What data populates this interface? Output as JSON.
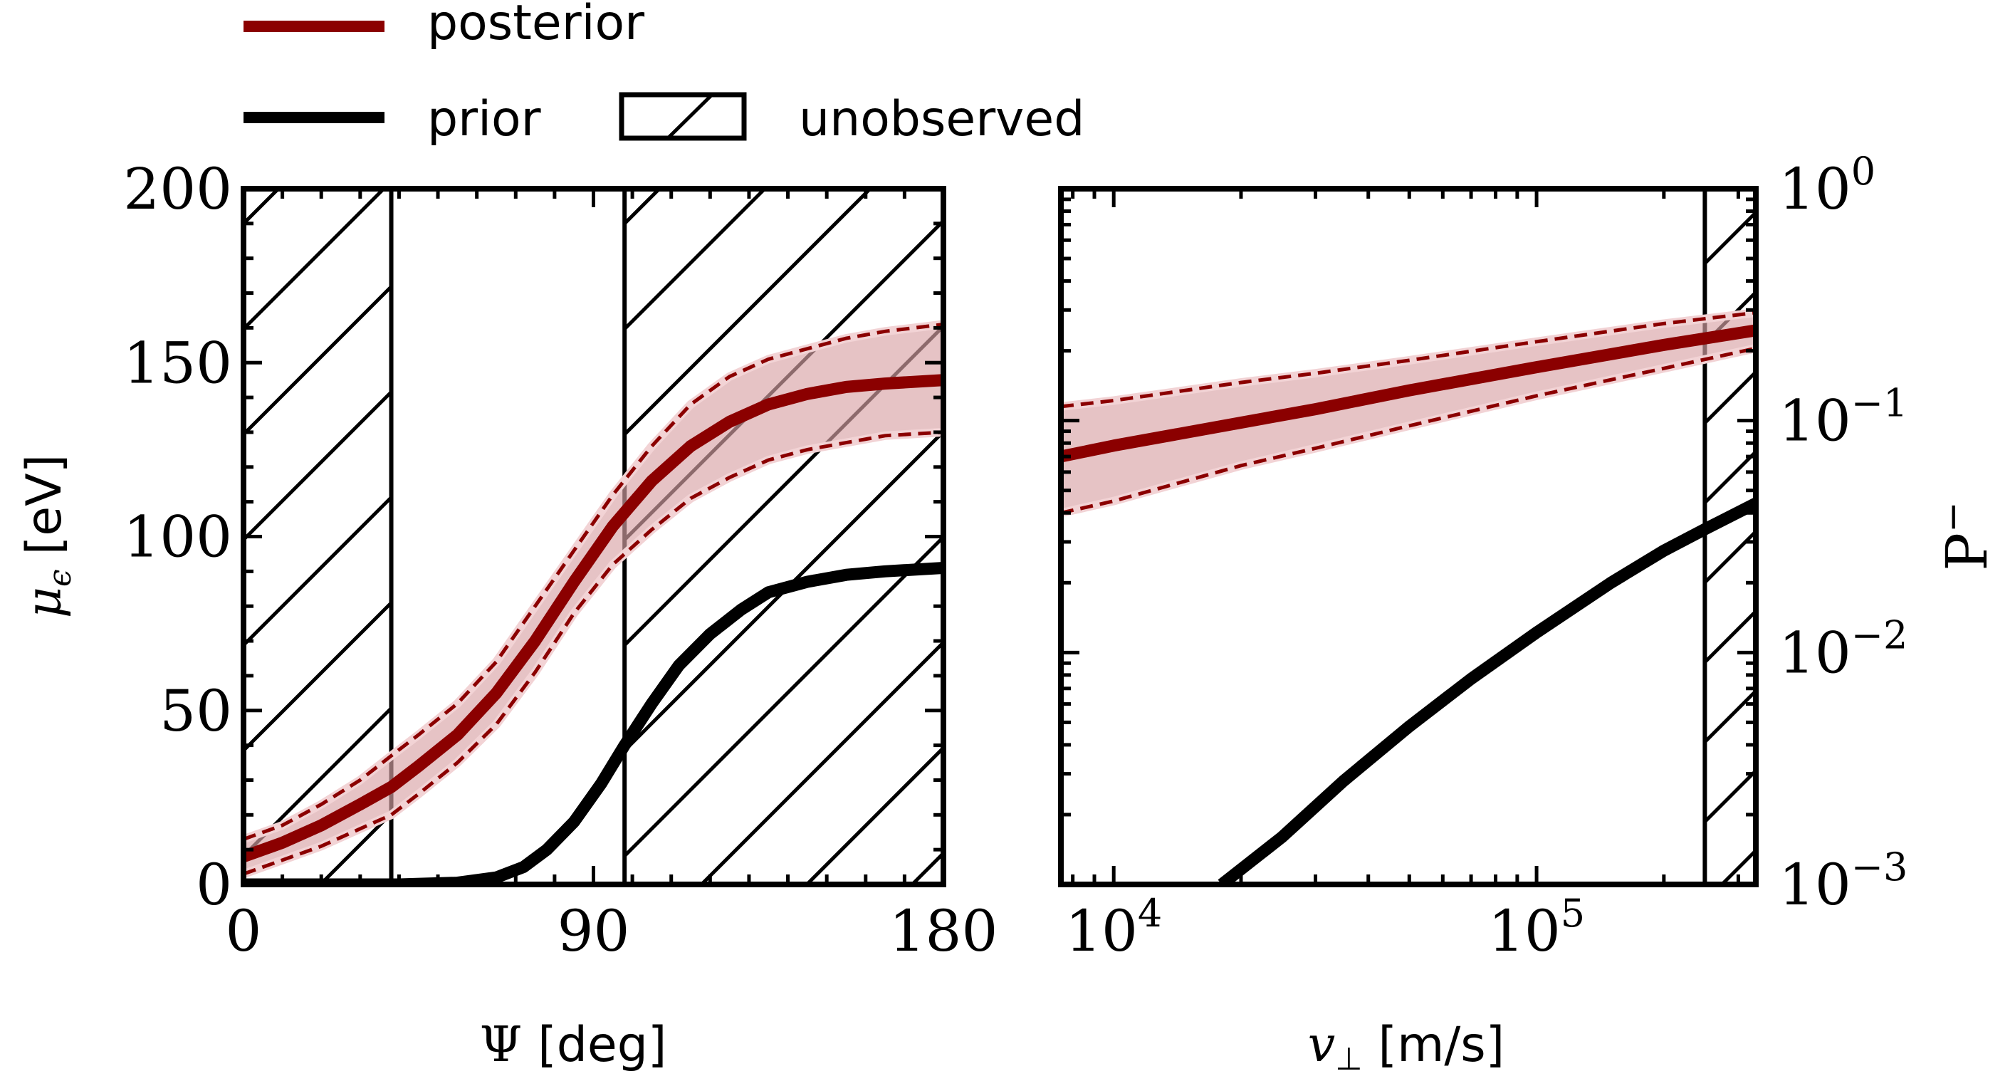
{
  "legend": {
    "items": [
      {
        "label": "posterior",
        "color": "#8b0000",
        "kind": "line"
      },
      {
        "label": "prior",
        "color": "#000000",
        "kind": "line"
      },
      {
        "label": "unobserved",
        "kind": "hatch"
      }
    ]
  },
  "colors": {
    "posterior": "#8b0000",
    "band": "#d9a3a6",
    "band_edge": "#f2d3d5",
    "prior": "#000000"
  },
  "chart_data": [
    {
      "type": "line",
      "xlabel_main": "Ψ",
      "xlabel_unit": "[deg]",
      "ylabel_main": "μ",
      "ylabel_sub": "ϵ",
      "ylabel_unit": "[eV]",
      "xlim": [
        0,
        180
      ],
      "ylim": [
        0,
        200
      ],
      "xticks": [
        0,
        90,
        180
      ],
      "yticks": [
        0,
        50,
        100,
        150,
        200
      ],
      "xtick_labels": [
        "0",
        "90",
        "180"
      ],
      "ytick_labels": [
        "0",
        "50",
        "100",
        "150",
        "200"
      ],
      "unobserved_regions": [
        [
          0,
          38
        ],
        [
          98,
          180
        ]
      ],
      "series": [
        {
          "name": "posterior",
          "x": [
            0,
            10,
            20,
            30,
            38,
            45,
            55,
            65,
            75,
            85,
            95,
            105,
            115,
            125,
            135,
            145,
            155,
            165,
            180
          ],
          "y": [
            8,
            12,
            17,
            23,
            28,
            34,
            43,
            55,
            70,
            87,
            103,
            116,
            126,
            133,
            138,
            141,
            143,
            144,
            145
          ],
          "lower": [
            3,
            7,
            11,
            16,
            20,
            26,
            35,
            46,
            61,
            78,
            92,
            102,
            111,
            117,
            122,
            125,
            127,
            129,
            130
          ],
          "upper": [
            13,
            17,
            23,
            30,
            37,
            43,
            52,
            64,
            80,
            96,
            112,
            126,
            138,
            146,
            151,
            154,
            157,
            159,
            161
          ]
        },
        {
          "name": "prior",
          "x": [
            0,
            20,
            40,
            55,
            65,
            72,
            78,
            85,
            92,
            98,
            105,
            112,
            120,
            128,
            135,
            145,
            155,
            165,
            180
          ],
          "y": [
            0,
            0,
            0,
            0.5,
            2,
            5,
            10,
            18,
            29,
            40,
            52,
            63,
            72,
            79,
            84,
            87,
            89,
            90,
            91
          ]
        }
      ]
    },
    {
      "type": "line",
      "xscale": "log",
      "yscale": "log",
      "xlabel_main": "v",
      "xlabel_sub": "⊥",
      "xlabel_unit": "[m/s]",
      "ylabel_main": "P",
      "ylabel_sup": "−",
      "xlim": [
        7500,
        330000
      ],
      "ylim": [
        0.001,
        1
      ],
      "xticks": [
        10000,
        100000
      ],
      "xtick_labels": [
        {
          "base": "10",
          "exp": "4"
        },
        {
          "base": "10",
          "exp": "5"
        }
      ],
      "yticks": [
        0.001,
        0.01,
        0.1,
        1
      ],
      "ytick_labels": [
        {
          "base": "10",
          "exp": "−3"
        },
        {
          "base": "10",
          "exp": "−2"
        },
        {
          "base": "10",
          "exp": "−1"
        },
        {
          "base": "10",
          "exp": "0"
        }
      ],
      "unobserved_regions": [
        [
          250000,
          330000
        ]
      ],
      "series": [
        {
          "name": "posterior",
          "x": [
            7500,
            10000,
            20000,
            30000,
            50000,
            100000,
            200000,
            330000
          ],
          "y": [
            0.07,
            0.078,
            0.098,
            0.112,
            0.135,
            0.17,
            0.212,
            0.245
          ],
          "lower": [
            0.04,
            0.045,
            0.064,
            0.076,
            0.095,
            0.128,
            0.168,
            0.205
          ],
          "upper": [
            0.115,
            0.122,
            0.146,
            0.16,
            0.182,
            0.219,
            0.262,
            0.292
          ]
        },
        {
          "name": "prior",
          "x": [
            18000,
            25000,
            35000,
            50000,
            70000,
            100000,
            150000,
            200000,
            250000,
            330000
          ],
          "y": [
            0.001,
            0.0016,
            0.0028,
            0.0048,
            0.0077,
            0.0122,
            0.02,
            0.0275,
            0.034,
            0.044
          ]
        }
      ]
    }
  ]
}
